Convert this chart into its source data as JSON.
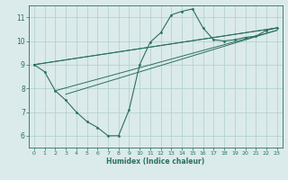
{
  "background_color": "#dbeaea",
  "grid_color": "#aecece",
  "line_color": "#2a7060",
  "xlabel": "Humidex (Indice chaleur)",
  "xlim": [
    -0.5,
    23.5
  ],
  "ylim": [
    5.5,
    11.5
  ],
  "yticks": [
    6,
    7,
    8,
    9,
    10,
    11
  ],
  "xticks": [
    0,
    1,
    2,
    3,
    4,
    5,
    6,
    7,
    8,
    9,
    10,
    11,
    12,
    13,
    14,
    15,
    16,
    17,
    18,
    19,
    20,
    21,
    22,
    23
  ],
  "main_curve": {
    "x": [
      0,
      1,
      2,
      3,
      4,
      5,
      6,
      7,
      8,
      9,
      10,
      11,
      12,
      13,
      14,
      15,
      16,
      17,
      18,
      19,
      20,
      21,
      22,
      23
    ],
    "y": [
      9.0,
      8.7,
      7.9,
      7.5,
      7.0,
      6.6,
      6.35,
      6.0,
      6.0,
      7.1,
      9.0,
      9.95,
      10.35,
      11.1,
      11.25,
      11.35,
      10.55,
      10.05,
      10.0,
      10.05,
      10.15,
      10.2,
      10.45,
      10.55
    ]
  },
  "trend_lines": [
    {
      "x": [
        0,
        23
      ],
      "y": [
        9.0,
        10.55
      ]
    },
    {
      "x": [
        0,
        23
      ],
      "y": [
        9.0,
        10.55
      ]
    },
    {
      "x": [
        2,
        23
      ],
      "y": [
        7.9,
        10.45
      ]
    },
    {
      "x": [
        3,
        23
      ],
      "y": [
        7.75,
        10.45
      ]
    }
  ]
}
